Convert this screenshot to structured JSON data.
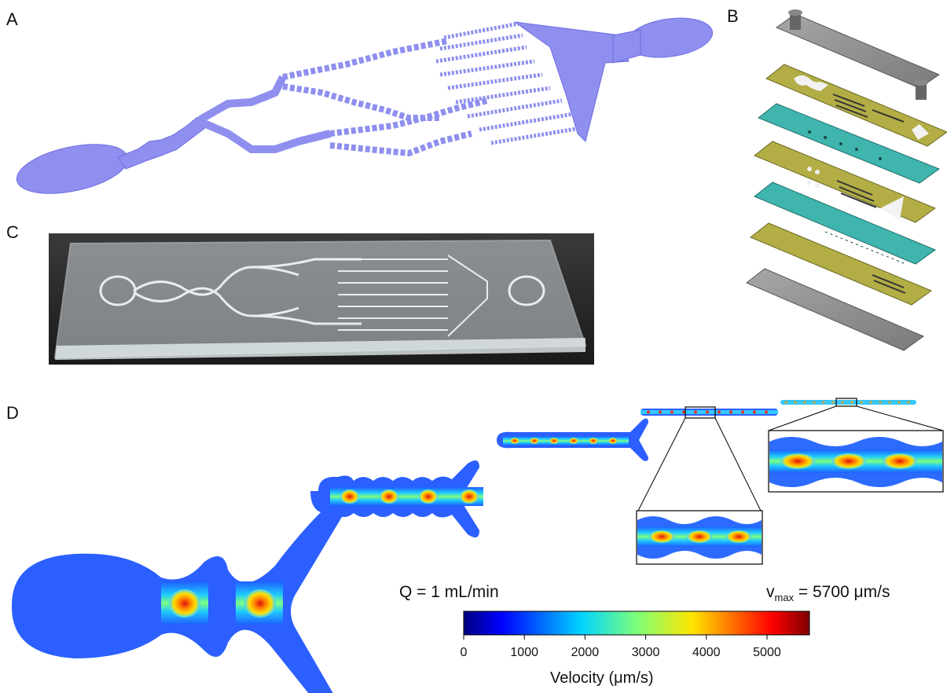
{
  "panels": {
    "a": "A",
    "b": "B",
    "c": "C",
    "d": "D"
  },
  "simulation": {
    "flow_rate": "Q = 1 mL/min",
    "vmax_prefix": "v",
    "vmax_sub": "max",
    "vmax_value": " = 5700 μm/s"
  },
  "colorbar": {
    "title": "Velocity (μm/s)",
    "ticks": [
      "0",
      "1000",
      "2000",
      "3000",
      "4000",
      "5000"
    ],
    "min": 0,
    "max": 5700,
    "colormap": "jet"
  },
  "colors": {
    "device_3d": "#8f8ff0",
    "plate_gray": "#8c8c8c",
    "layer_olive": "#b2ad45",
    "layer_teal": "#3fb5ad",
    "photo_bg": "#111111"
  }
}
